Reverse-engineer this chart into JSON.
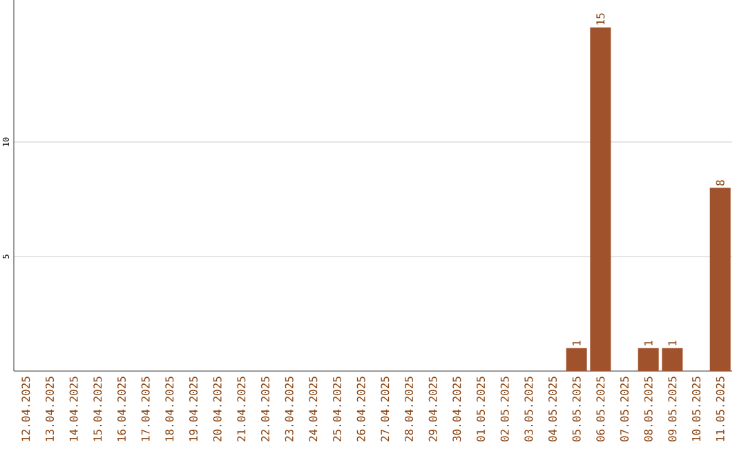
{
  "chart_data": {
    "type": "bar",
    "categories": [
      "12.04.2025",
      "13.04.2025",
      "14.04.2025",
      "15.04.2025",
      "16.04.2025",
      "17.04.2025",
      "18.04.2025",
      "19.04.2025",
      "20.04.2025",
      "21.04.2025",
      "22.04.2025",
      "23.04.2025",
      "24.04.2025",
      "25.04.2025",
      "26.04.2025",
      "27.04.2025",
      "28.04.2025",
      "29.04.2025",
      "30.04.2025",
      "01.05.2025",
      "02.05.2025",
      "03.05.2025",
      "04.05.2025",
      "05.05.2025",
      "06.05.2025",
      "07.05.2025",
      "08.05.2025",
      "09.05.2025",
      "10.05.2025",
      "11.05.2025"
    ],
    "values": [
      0,
      0,
      0,
      0,
      0,
      0,
      0,
      0,
      0,
      0,
      0,
      0,
      0,
      0,
      0,
      0,
      0,
      0,
      0,
      0,
      0,
      0,
      0,
      1,
      15,
      0,
      1,
      1,
      0,
      8
    ],
    "value_labels": [
      null,
      null,
      null,
      null,
      null,
      null,
      null,
      null,
      null,
      null,
      null,
      null,
      null,
      null,
      null,
      null,
      null,
      null,
      null,
      null,
      null,
      null,
      null,
      "1",
      "15",
      null,
      "1",
      "1",
      null,
      "8"
    ],
    "color": "#a0522d",
    "ylim": [
      0,
      16.2
    ],
    "yticks": [
      5,
      10
    ],
    "grid": "y"
  }
}
